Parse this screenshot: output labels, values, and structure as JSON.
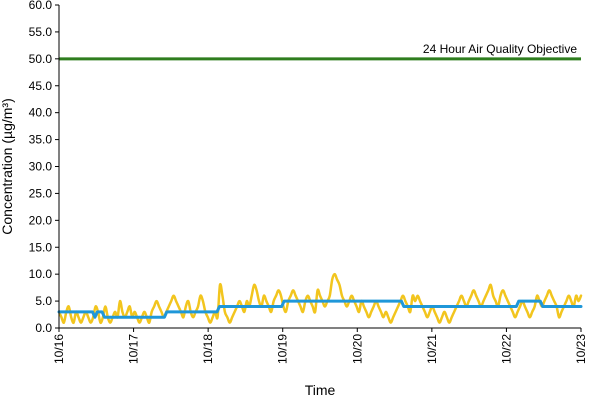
{
  "chart_data": {
    "type": "line",
    "title": "",
    "xlabel": "Time",
    "ylabel": "Concentration (µg/m³)",
    "ylim": [
      0,
      60
    ],
    "yticks": [
      "0.0",
      "5.0",
      "10.0",
      "15.0",
      "20.0",
      "25.0",
      "30.0",
      "35.0",
      "40.0",
      "45.0",
      "50.0",
      "55.0",
      "60.0"
    ],
    "xlim": [
      "10/16",
      "10/23"
    ],
    "xticks": [
      "10/16",
      "10/17",
      "10/18",
      "10/19",
      "10/20",
      "10/21",
      "10/22",
      "10/23"
    ],
    "grid": false,
    "legend": "none",
    "reference_line": {
      "label": "24 Hour Air Quality Objective",
      "value": 50,
      "color": "#2e7d1e"
    },
    "series": [
      {
        "color": "#f2c51e",
        "style": "hourly",
        "x_start": "10/16",
        "x_end": "10/23",
        "values": [
          3,
          2,
          1,
          3,
          4,
          2,
          1,
          3,
          2,
          1,
          2,
          3,
          2,
          1,
          2,
          4,
          3,
          1,
          2,
          4,
          2,
          1,
          2,
          3,
          2,
          5,
          3,
          2,
          3,
          4,
          2,
          3,
          2,
          1,
          2,
          3,
          2,
          1,
          3,
          4,
          5,
          4,
          3,
          2,
          3,
          4,
          5,
          6,
          5,
          4,
          3,
          2,
          4,
          5,
          3,
          2,
          3,
          4,
          6,
          5,
          3,
          2,
          1,
          2,
          3,
          2,
          8,
          6,
          3,
          2,
          1,
          2,
          3,
          4,
          5,
          4,
          3,
          5,
          4,
          6,
          8,
          7,
          5,
          4,
          6,
          5,
          4,
          3,
          5,
          6,
          7,
          6,
          4,
          3,
          5,
          6,
          7,
          6,
          5,
          4,
          3,
          5,
          6,
          5,
          4,
          3,
          7,
          6,
          5,
          4,
          5,
          6,
          9,
          10,
          9,
          8,
          6,
          5,
          4,
          5,
          6,
          5,
          4,
          3,
          5,
          4,
          3,
          2,
          3,
          4,
          5,
          4,
          3,
          2,
          3,
          2,
          1,
          2,
          3,
          4,
          5,
          6,
          5,
          4,
          3,
          6,
          5,
          6,
          5,
          4,
          3,
          2,
          3,
          4,
          3,
          2,
          1,
          2,
          3,
          2,
          1,
          2,
          3,
          4,
          5,
          6,
          5,
          4,
          5,
          6,
          7,
          6,
          5,
          4,
          5,
          6,
          7,
          8,
          6,
          5,
          4,
          6,
          7,
          6,
          5,
          4,
          3,
          2,
          3,
          4,
          5,
          4,
          3,
          2,
          3,
          4,
          6,
          5,
          4,
          5,
          6,
          7,
          6,
          5,
          4,
          2,
          3,
          4,
          5,
          6,
          5,
          4,
          6,
          5,
          6
        ]
      },
      {
        "color": "#1f97d9",
        "style": "daily",
        "x_start": "10/16",
        "x_end": "10/23",
        "values": [
          3,
          3,
          3,
          3,
          3,
          3,
          3,
          3,
          3,
          3,
          3,
          3,
          3,
          3,
          3,
          2,
          3,
          3,
          3,
          2,
          2,
          2,
          2,
          2,
          2,
          2,
          2,
          2,
          2,
          2,
          2,
          2,
          2,
          2,
          2,
          2,
          2,
          2,
          2,
          2,
          2,
          2,
          2,
          2,
          2,
          3,
          3,
          3,
          3,
          3,
          3,
          3,
          3,
          3,
          3,
          3,
          3,
          3,
          3,
          3,
          3,
          3,
          3,
          3,
          3,
          3,
          3,
          4,
          4,
          4,
          4,
          4,
          4,
          4,
          4,
          4,
          4,
          4,
          4,
          4,
          4,
          4,
          4,
          4,
          4,
          4,
          4,
          4,
          4,
          4,
          4,
          4,
          4,
          4,
          5,
          5,
          5,
          5,
          5,
          5,
          5,
          5,
          5,
          5,
          5,
          5,
          5,
          5,
          5,
          5,
          5,
          5,
          5,
          5,
          5,
          5,
          5,
          5,
          5,
          5,
          5,
          5,
          5,
          5,
          5,
          5,
          5,
          5,
          5,
          5,
          5,
          5,
          5,
          5,
          5,
          5,
          5,
          5,
          5,
          5,
          5,
          5,
          5,
          5,
          4,
          4,
          4,
          4,
          4,
          4,
          4,
          4,
          4,
          4,
          4,
          4,
          4,
          4,
          4,
          4,
          4,
          4,
          4,
          4,
          4,
          4,
          4,
          4,
          4,
          4,
          4,
          4,
          4,
          4,
          4,
          4,
          4,
          4,
          4,
          4,
          4,
          4,
          4,
          4,
          4,
          4,
          4,
          4,
          4,
          4,
          4,
          4,
          5,
          5,
          5,
          5,
          5,
          5,
          5,
          5,
          5,
          5,
          4,
          4,
          4,
          4,
          4,
          4,
          4,
          4,
          4,
          4,
          4,
          4,
          4,
          4,
          4,
          4,
          4
        ]
      }
    ]
  }
}
